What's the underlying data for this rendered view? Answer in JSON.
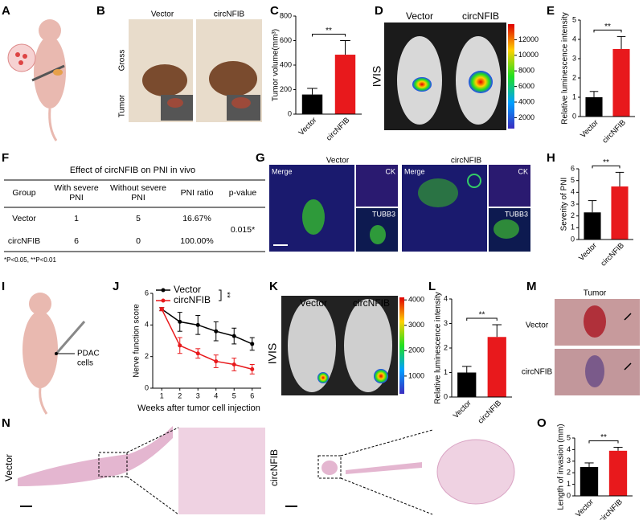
{
  "panel_labels": [
    "A",
    "B",
    "C",
    "D",
    "E",
    "F",
    "G",
    "H",
    "I",
    "J",
    "K",
    "L",
    "M",
    "N",
    "O"
  ],
  "images": {
    "B": {
      "labels": [
        "Vector",
        "circNFIB",
        "Gross",
        "Tumor"
      ]
    },
    "D": {
      "labels": [
        "Vector",
        "circNFIB",
        "IVIS"
      ],
      "colorbar_lim": [
        600,
        14000
      ],
      "colorbar_ticks": [
        2000,
        4000,
        6000,
        8000,
        10000,
        12000
      ]
    },
    "G": {
      "labels": [
        "Vector",
        "circNFIB",
        "Merge",
        "CK",
        "TUBB3",
        "Merge",
        "CK",
        "TUBB3"
      ]
    },
    "I": {
      "labels": [
        "PDAC",
        "cells"
      ]
    },
    "K": {
      "labels": [
        "Vector",
        "circNFIB",
        "IVIS"
      ],
      "colorbar_lim": [
        300,
        4100
      ],
      "colorbar_ticks": [
        1000,
        2000,
        3000,
        4000
      ]
    },
    "M": {
      "labels": [
        "Tumor",
        "Vector",
        "circNFIB"
      ]
    },
    "N": {
      "labels": [
        "Vector",
        "circNFIB"
      ]
    }
  },
  "table": {
    "title": "Effect of circNFIB on PNI in vivo",
    "header": [
      [
        "Group"
      ],
      [
        "With severe",
        "PNI"
      ],
      [
        "Without severe",
        "PNI"
      ],
      [
        "PNI ratio"
      ],
      [
        "p-value"
      ]
    ],
    "rows": [
      [
        "Vector",
        1,
        5,
        "16.67%"
      ],
      [
        "circNFIB",
        6,
        0,
        "100.00%"
      ]
    ],
    "p_value": "0.015*",
    "footnote": "*P<0.05, **P<0.01"
  },
  "chart_data": [
    {
      "type": "bar",
      "ylabel": "Tumor volume(mm³)",
      "categories": [
        "Vector",
        "circNFIB"
      ],
      "values": [
        160,
        485
      ],
      "errors": [
        50,
        115
      ],
      "colors": [
        "#000000",
        "#e8191c"
      ],
      "ylim": [
        0,
        800
      ],
      "yticks": [
        0,
        200,
        400,
        600,
        800
      ],
      "significance": "**"
    },
    {
      "type": "bar",
      "ylabel": "Relative luminescence intensity",
      "categories": [
        "Vector",
        "circNFIB"
      ],
      "values": [
        1.0,
        3.5
      ],
      "errors": [
        0.3,
        0.65
      ],
      "colors": [
        "#000000",
        "#e8191c"
      ],
      "ylim": [
        0,
        5
      ],
      "yticks": [
        0,
        1,
        2,
        3,
        4,
        5
      ],
      "significance": "**"
    },
    {
      "type": "bar",
      "ylabel": "Severity of PNI",
      "categories": [
        "Vector",
        "circNFIB"
      ],
      "values": [
        2.3,
        4.5
      ],
      "errors": [
        1.0,
        1.2
      ],
      "colors": [
        "#000000",
        "#e8191c"
      ],
      "ylim": [
        0,
        6
      ],
      "yticks": [
        0,
        1,
        2,
        3,
        4,
        5,
        6
      ],
      "significance": "**"
    },
    {
      "type": "line",
      "ylabel": "Nerve function score",
      "xlabel": "Weeks after tumor cell injection",
      "x": [
        1,
        2,
        3,
        4,
        5,
        6
      ],
      "xlim": [
        0.5,
        6.5
      ],
      "xticks": [
        1,
        2,
        3,
        4,
        5,
        6
      ],
      "ylim": [
        0,
        6
      ],
      "yticks": [
        0,
        2,
        4,
        6
      ],
      "series": [
        {
          "name": "Vector",
          "color": "#000000",
          "values": [
            5.0,
            4.2,
            4.0,
            3.6,
            3.3,
            2.8
          ],
          "errors": [
            0.1,
            0.6,
            0.6,
            0.6,
            0.5,
            0.4
          ]
        },
        {
          "name": "circNFIB",
          "color": "#e8191c",
          "values": [
            5.0,
            2.7,
            2.2,
            1.7,
            1.5,
            1.2
          ],
          "errors": [
            0.1,
            0.5,
            0.3,
            0.4,
            0.4,
            0.3
          ]
        }
      ],
      "significance": "**"
    },
    {
      "type": "bar",
      "ylabel": "Relative luminescence intensity",
      "categories": [
        "Vector",
        "circNFIB"
      ],
      "values": [
        1.0,
        2.45
      ],
      "errors": [
        0.25,
        0.5
      ],
      "colors": [
        "#000000",
        "#e8191c"
      ],
      "ylim": [
        0,
        4
      ],
      "yticks": [
        0,
        1,
        2,
        3,
        4
      ],
      "significance": "**"
    },
    {
      "type": "bar",
      "ylabel": "Length of invasion (mm)",
      "categories": [
        "Vector",
        "circNFIB"
      ],
      "values": [
        2.5,
        3.9
      ],
      "errors": [
        0.35,
        0.3
      ],
      "colors": [
        "#000000",
        "#e8191c"
      ],
      "ylim": [
        0,
        5
      ],
      "yticks": [
        0,
        1,
        2,
        3,
        4,
        5
      ],
      "significance": "**"
    }
  ]
}
